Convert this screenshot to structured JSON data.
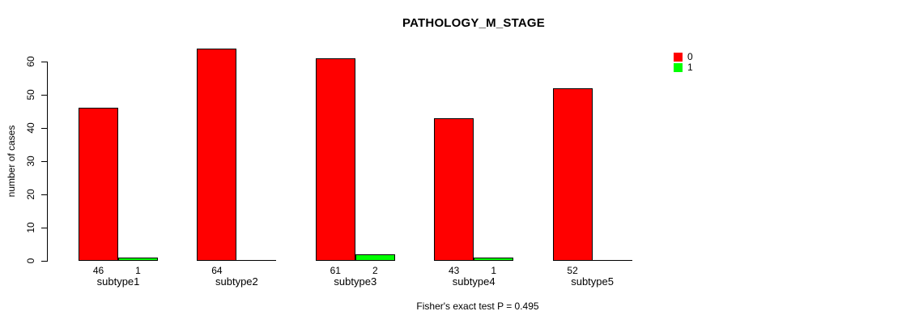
{
  "chart_data": {
    "type": "bar",
    "title": "PATHOLOGY_M_STAGE",
    "ylabel": "number of cases",
    "xlabel": "",
    "categories": [
      "subtype1",
      "subtype2",
      "subtype3",
      "subtype4",
      "subtype5"
    ],
    "series": [
      {
        "name": "0",
        "color": "#ff0000",
        "values": [
          46,
          64,
          61,
          43,
          52
        ]
      },
      {
        "name": "1",
        "color": "#00ff00",
        "values": [
          1,
          0,
          2,
          1,
          0
        ]
      }
    ],
    "ylim": [
      0,
      60
    ],
    "yticks": [
      0,
      10,
      20,
      30,
      40,
      50,
      60
    ],
    "grid": false,
    "legend_position": "top-right",
    "value_labels": [
      [
        "46",
        "1"
      ],
      [
        "64",
        ""
      ],
      [
        "61",
        "2"
      ],
      [
        "43",
        "1"
      ],
      [
        "52",
        ""
      ]
    ],
    "footnote": "Fisher's exact test P = 0.495"
  }
}
